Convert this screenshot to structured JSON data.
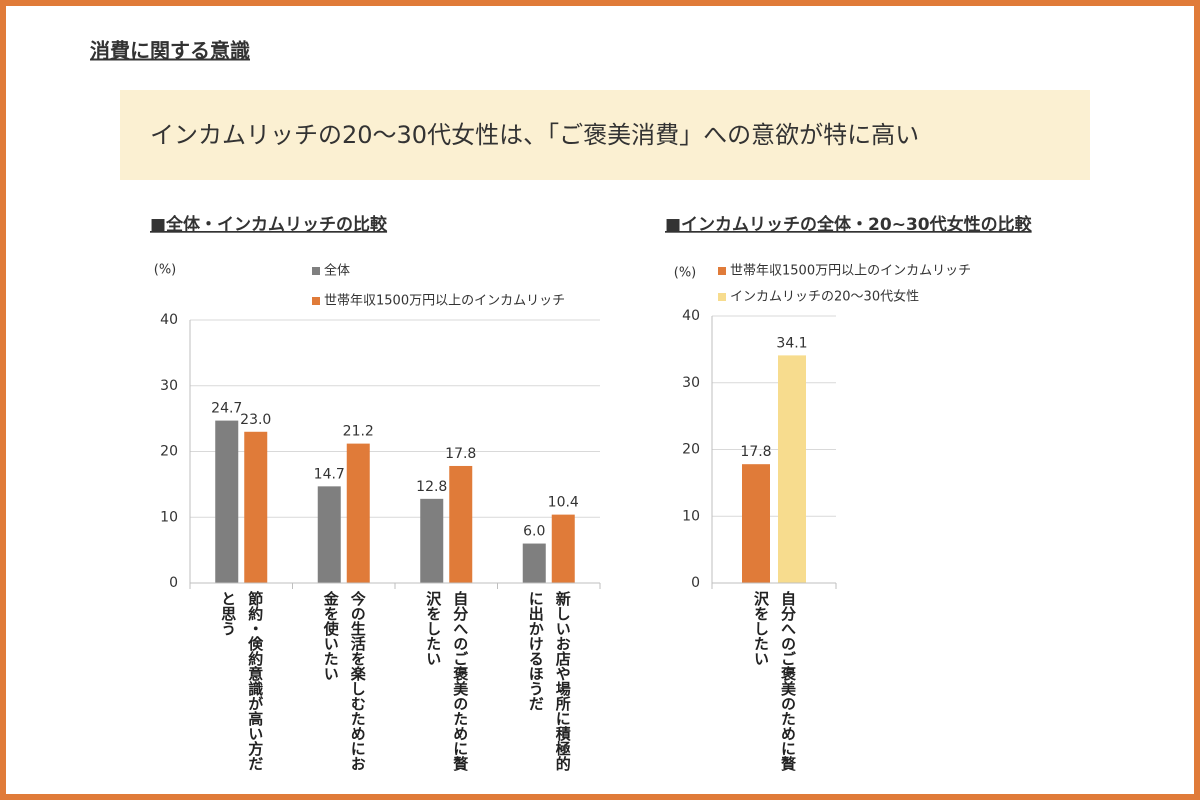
{
  "header": {
    "title": "消費に関する意識"
  },
  "banner": "インカムリッチの20～30代女性は、「ご褒美消費」への意欲が特に高い",
  "chart_data": [
    {
      "type": "bar",
      "title": "■全体・インカムリッチの比較",
      "y_unit": "(%)",
      "categories": [
        "節約・倹約意識が高い方だと思う",
        "今の生活を楽しむためにお金を使いたい",
        "自分へのご褒美のために贅沢をしたい",
        "新しいお店や場所に積極的に出かけるほうだ"
      ],
      "series": [
        {
          "name": "全体",
          "color": "#7f7f7f",
          "values": [
            24.7,
            14.7,
            12.8,
            6.0
          ],
          "value_labels": [
            "24.7",
            "14.7",
            "12.8",
            "6.0"
          ]
        },
        {
          "name": "世帯年収1500万円以上のインカムリッチ",
          "color": "#e07b39",
          "values": [
            23.0,
            21.2,
            17.8,
            10.4
          ],
          "value_labels": [
            "23.0",
            "21.2",
            "17.8",
            "10.4"
          ]
        }
      ],
      "ylim": [
        0,
        40
      ],
      "yticks": [
        0,
        10,
        20,
        30,
        40
      ],
      "grid": true
    },
    {
      "type": "bar",
      "title": "■インカムリッチの全体・20~30代女性の比較",
      "y_unit": "(%)",
      "categories": [
        "自分へのご褒美のために贅沢をしたい"
      ],
      "series": [
        {
          "name": "世帯年収1500万円以上のインカムリッチ",
          "color": "#e07b39",
          "values": [
            17.8
          ]
        },
        {
          "name": "インカムリッチの20～30代女性",
          "color": "#f7dc8e",
          "values": [
            34.1
          ]
        }
      ],
      "ylim": [
        0,
        40
      ],
      "yticks": [
        0,
        10,
        20,
        30,
        40
      ],
      "grid": true
    }
  ]
}
